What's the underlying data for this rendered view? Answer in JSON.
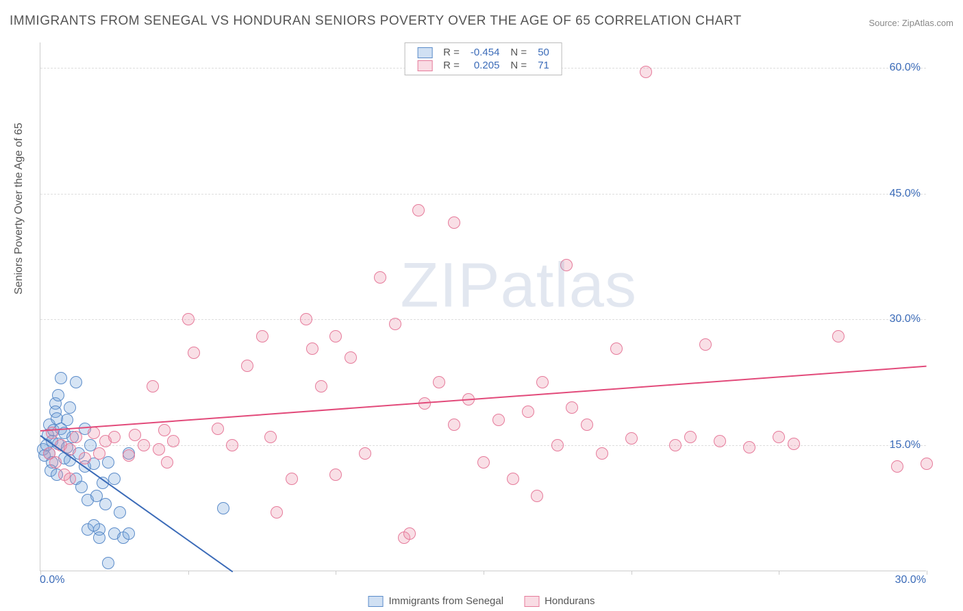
{
  "title": "IMMIGRANTS FROM SENEGAL VS HONDURAN SENIORS POVERTY OVER THE AGE OF 65 CORRELATION CHART",
  "source": "Source: ZipAtlas.com",
  "watermark": "ZIPatlas",
  "y_axis_label": "Seniors Poverty Over the Age of 65",
  "chart": {
    "type": "scatter",
    "background_color": "#ffffff",
    "grid_color": "#dddddd",
    "border_color": "#cccccc",
    "xlim": [
      0,
      30
    ],
    "ylim": [
      0,
      63
    ],
    "y_ticks": [
      15,
      30,
      45,
      60
    ],
    "y_tick_labels": [
      "15.0%",
      "30.0%",
      "45.0%",
      "60.0%"
    ],
    "x_tick_marks": [
      0,
      5,
      10,
      15,
      20,
      25,
      30
    ],
    "x_min_label": "0.0%",
    "x_max_label": "30.0%",
    "marker_radius": 9,
    "marker_border_width": 1.2,
    "regline_width": 2
  },
  "legend_top": {
    "r_label": "R =",
    "n_label": "N =",
    "rows": [
      {
        "swatch_fill": "rgba(120,165,220,0.35)",
        "swatch_border": "#5a8bc9",
        "r": "-0.454",
        "n": "50"
      },
      {
        "swatch_fill": "rgba(235,140,165,0.3)",
        "swatch_border": "#e67a9a",
        "r": "0.205",
        "n": "71"
      }
    ]
  },
  "legend_bottom": {
    "items": [
      {
        "label": "Immigrants from Senegal",
        "fill": "rgba(120,165,220,0.35)",
        "border": "#5a8bc9"
      },
      {
        "label": "Hondurans",
        "fill": "rgba(235,140,165,0.3)",
        "border": "#e67a9a"
      }
    ]
  },
  "series": [
    {
      "name": "senegal",
      "fill": "rgba(120,165,220,0.30)",
      "border": "#5a8bc9",
      "regression": {
        "x1": 0,
        "y1": 16.2,
        "x2": 6.5,
        "y2": 0,
        "color": "#3b6bb8"
      },
      "points": [
        [
          0.1,
          14.5
        ],
        [
          0.15,
          13.8
        ],
        [
          0.2,
          15.0
        ],
        [
          0.25,
          16.2
        ],
        [
          0.3,
          14.0
        ],
        [
          0.3,
          17.5
        ],
        [
          0.4,
          13.0
        ],
        [
          0.4,
          15.5
        ],
        [
          0.45,
          16.8
        ],
        [
          0.5,
          20.0
        ],
        [
          0.5,
          19.0
        ],
        [
          0.55,
          18.2
        ],
        [
          0.6,
          21.0
        ],
        [
          0.6,
          15.2
        ],
        [
          0.7,
          17.0
        ],
        [
          0.7,
          23.0
        ],
        [
          0.8,
          16.5
        ],
        [
          0.8,
          13.5
        ],
        [
          0.9,
          18.0
        ],
        [
          0.9,
          14.8
        ],
        [
          1.0,
          19.5
        ],
        [
          1.0,
          13.2
        ],
        [
          1.1,
          16.0
        ],
        [
          1.2,
          22.5
        ],
        [
          1.2,
          11.0
        ],
        [
          1.3,
          14.0
        ],
        [
          1.4,
          10.0
        ],
        [
          1.5,
          17.0
        ],
        [
          1.5,
          12.5
        ],
        [
          1.6,
          8.5
        ],
        [
          1.7,
          15.0
        ],
        [
          1.8,
          12.8
        ],
        [
          1.9,
          9.0
        ],
        [
          2.0,
          5.0
        ],
        [
          2.1,
          10.5
        ],
        [
          2.2,
          8.0
        ],
        [
          2.3,
          13.0
        ],
        [
          2.5,
          4.5
        ],
        [
          2.5,
          11.0
        ],
        [
          2.7,
          7.0
        ],
        [
          2.8,
          4.0
        ],
        [
          2.0,
          4.0
        ],
        [
          3.0,
          14.0
        ],
        [
          3.0,
          4.5
        ],
        [
          2.3,
          1.0
        ],
        [
          1.6,
          5.0
        ],
        [
          1.8,
          5.5
        ],
        [
          6.2,
          7.5
        ],
        [
          0.35,
          12.0
        ],
        [
          0.55,
          11.5
        ]
      ]
    },
    {
      "name": "hondurans",
      "fill": "rgba(235,140,165,0.28)",
      "border": "#e67a9a",
      "regression": {
        "x1": 0,
        "y1": 16.8,
        "x2": 30,
        "y2": 24.5,
        "color": "#e24a7a"
      },
      "points": [
        [
          0.3,
          14.0
        ],
        [
          0.5,
          13.0
        ],
        [
          0.7,
          15.0
        ],
        [
          0.8,
          11.5
        ],
        [
          1.0,
          14.5
        ],
        [
          1.2,
          16.0
        ],
        [
          1.5,
          13.5
        ],
        [
          1.8,
          16.5
        ],
        [
          2.0,
          14.0
        ],
        [
          2.2,
          15.5
        ],
        [
          2.5,
          16.0
        ],
        [
          3.0,
          13.8
        ],
        [
          3.2,
          16.2
        ],
        [
          3.5,
          15.0
        ],
        [
          3.8,
          22.0
        ],
        [
          4.0,
          14.5
        ],
        [
          4.2,
          16.8
        ],
        [
          4.5,
          15.5
        ],
        [
          5.2,
          26.0
        ],
        [
          5.0,
          30.0
        ],
        [
          6.0,
          17.0
        ],
        [
          6.5,
          15.0
        ],
        [
          4.3,
          13.0
        ],
        [
          7.0,
          24.5
        ],
        [
          7.5,
          28.0
        ],
        [
          7.8,
          16.0
        ],
        [
          8.0,
          7.0
        ],
        [
          8.5,
          11.0
        ],
        [
          9.0,
          30.0
        ],
        [
          9.2,
          26.5
        ],
        [
          9.5,
          22.0
        ],
        [
          10.0,
          28.0
        ],
        [
          10.0,
          11.5
        ],
        [
          10.5,
          25.5
        ],
        [
          11.0,
          14.0
        ],
        [
          11.5,
          35.0
        ],
        [
          12.0,
          29.5
        ],
        [
          12.3,
          4.0
        ],
        [
          12.5,
          4.5
        ],
        [
          12.8,
          43.0
        ],
        [
          13.0,
          20.0
        ],
        [
          13.5,
          22.5
        ],
        [
          14.0,
          17.5
        ],
        [
          14.0,
          41.5
        ],
        [
          14.5,
          20.5
        ],
        [
          15.0,
          13.0
        ],
        [
          15.5,
          18.0
        ],
        [
          16.0,
          11.0
        ],
        [
          16.5,
          19.0
        ],
        [
          16.8,
          9.0
        ],
        [
          17.0,
          22.5
        ],
        [
          17.5,
          15.0
        ],
        [
          17.8,
          36.5
        ],
        [
          18.0,
          19.5
        ],
        [
          18.5,
          17.5
        ],
        [
          19.0,
          14.0
        ],
        [
          19.5,
          26.5
        ],
        [
          20.0,
          15.8
        ],
        [
          20.5,
          59.5
        ],
        [
          22.5,
          27.0
        ],
        [
          22.0,
          16.0
        ],
        [
          23.0,
          15.5
        ],
        [
          21.5,
          15.0
        ],
        [
          24.0,
          14.8
        ],
        [
          25.0,
          16.0
        ],
        [
          25.5,
          15.2
        ],
        [
          27.0,
          28.0
        ],
        [
          29.0,
          12.5
        ],
        [
          30.0,
          12.8
        ],
        [
          1.0,
          11.0
        ],
        [
          0.4,
          16.5
        ]
      ]
    }
  ]
}
